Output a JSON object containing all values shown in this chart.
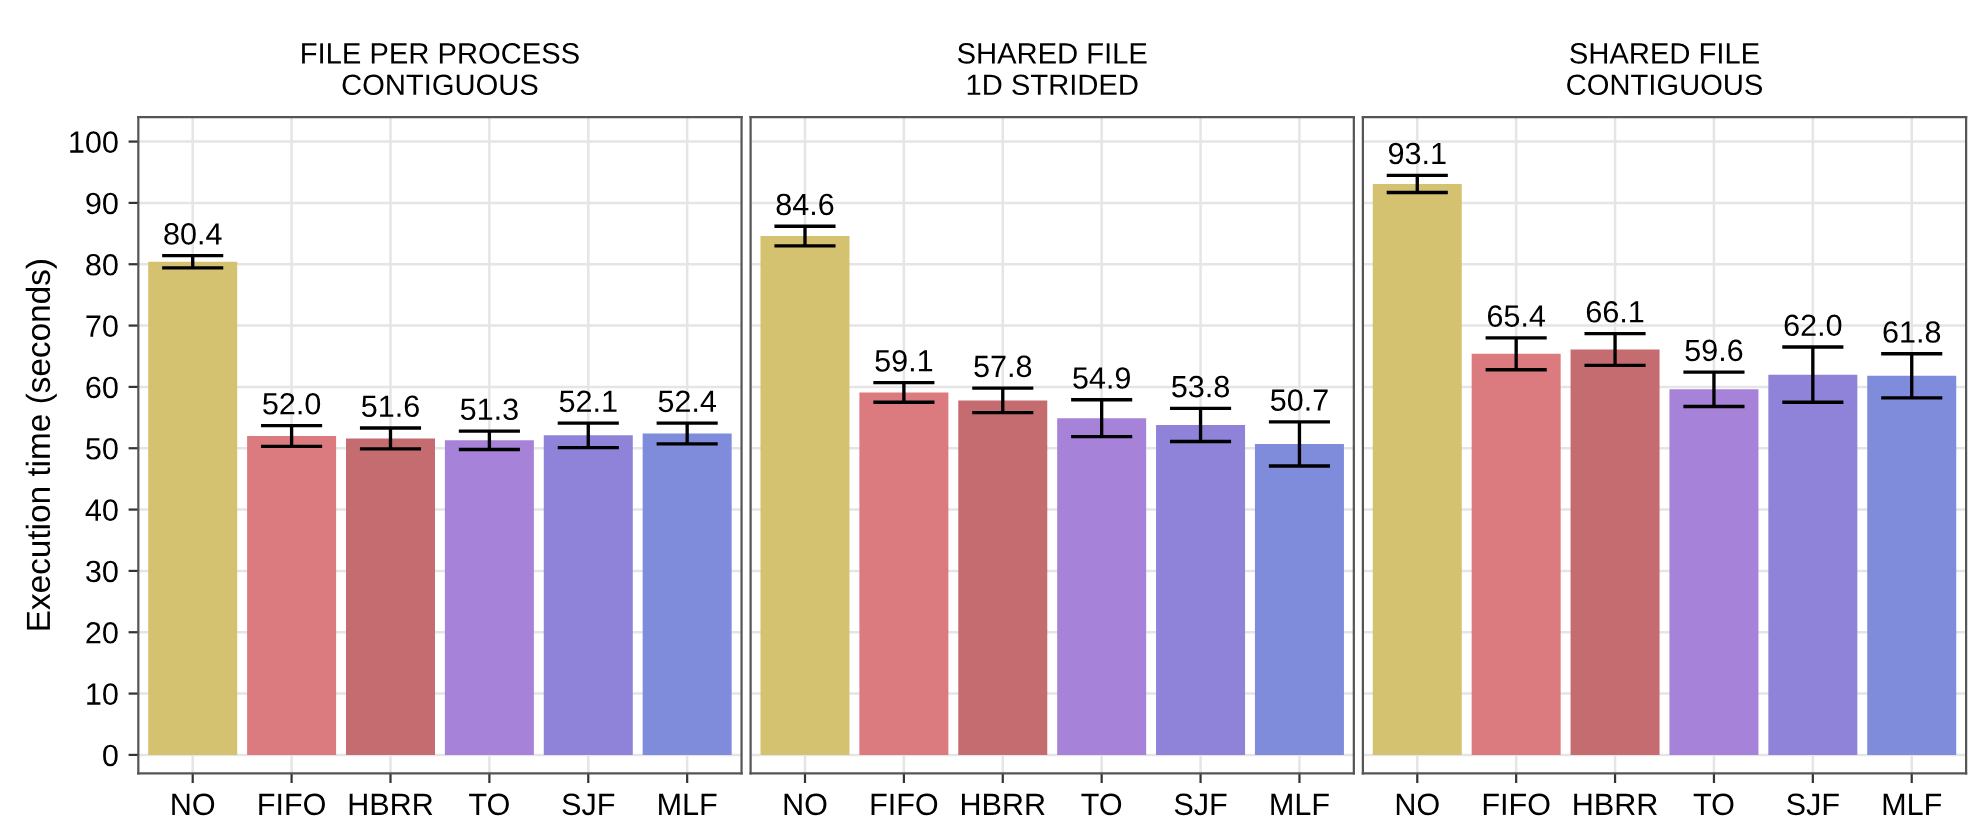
{
  "chart_data": [
    {
      "type": "bar",
      "title": "FILE PER PROCESS\nCONTIGUOUS",
      "ylabel": "Execution time (seconds)",
      "categories": [
        "NO",
        "FIFO",
        "HBRR",
        "TO",
        "SJF",
        "MLF"
      ],
      "values": [
        80.4,
        52.0,
        51.6,
        51.3,
        52.1,
        52.4
      ],
      "value_labels": [
        "80.4",
        "52.0",
        "51.6",
        "51.3",
        "52.1",
        "52.4"
      ],
      "errors": [
        1.0,
        1.7,
        1.7,
        1.5,
        2.0,
        1.7
      ],
      "colors": [
        "#d4c270",
        "#db7b80",
        "#c46c6f",
        "#a683d9",
        "#8e82d9",
        "#7f8cdb"
      ],
      "ylim": [
        -3,
        104
      ],
      "yticks": [
        0,
        10,
        20,
        30,
        40,
        50,
        60,
        70,
        80,
        90,
        100
      ],
      "grid": true
    },
    {
      "type": "bar",
      "title": "SHARED FILE\n1D STRIDED",
      "categories": [
        "NO",
        "FIFO",
        "HBRR",
        "TO",
        "SJF",
        "MLF"
      ],
      "values": [
        84.6,
        59.1,
        57.8,
        54.9,
        53.8,
        50.7
      ],
      "value_labels": [
        "84.6",
        "59.1",
        "57.8",
        "54.9",
        "53.8",
        "50.7"
      ],
      "errors": [
        1.6,
        1.6,
        2.0,
        3.0,
        2.7,
        3.6
      ],
      "colors": [
        "#d4c270",
        "#db7b80",
        "#c46c6f",
        "#a683d9",
        "#8e82d9",
        "#7f8cdb"
      ],
      "ylim": [
        -3,
        104
      ],
      "yticks": [
        0,
        10,
        20,
        30,
        40,
        50,
        60,
        70,
        80,
        90,
        100
      ],
      "grid": true,
      "tick_labels": "x"
    },
    {
      "type": "bar",
      "title": "SHARED FILE\nCONTIGUOUS",
      "categories": [
        "NO",
        "FIFO",
        "HBRR",
        "TO",
        "SJF",
        "MLF"
      ],
      "values": [
        93.1,
        65.4,
        66.1,
        59.6,
        62.0,
        61.8
      ],
      "value_labels": [
        "93.1",
        "65.4",
        "66.1",
        "59.6",
        "62.0",
        "61.8"
      ],
      "errors": [
        1.4,
        2.6,
        2.6,
        2.8,
        4.5,
        3.6
      ],
      "colors": [
        "#d4c270",
        "#db7b80",
        "#c46c6f",
        "#a683d9",
        "#8e82d9",
        "#7f8cdb"
      ],
      "ylim": [
        -3,
        104
      ],
      "yticks": [
        0,
        10,
        20,
        30,
        40,
        50,
        60,
        70,
        80,
        90,
        100
      ],
      "grid": true,
      "tick_labels": "x"
    }
  ]
}
